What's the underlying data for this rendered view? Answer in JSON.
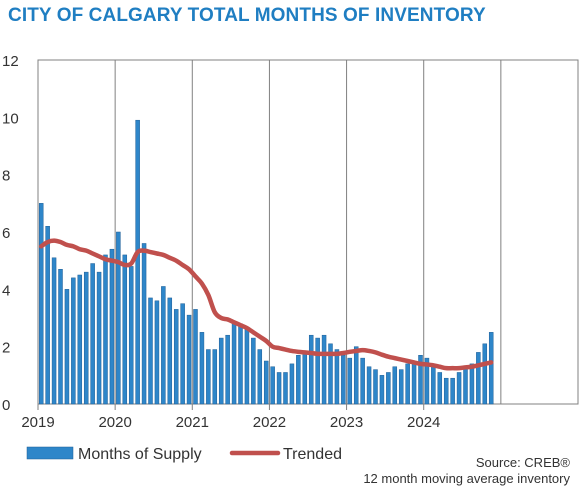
{
  "title": "CITY OF CALGARY TOTAL MONTHS OF INVENTORY",
  "source_line1": "Source: CREB®",
  "source_line2": "12 month moving average inventory",
  "colors": {
    "title": "#1f7ec2",
    "bar_fill": "#2e86c9",
    "bar_edge": "#1f5f96",
    "trend": "#c0504d",
    "grid": "#808080"
  },
  "chart_data": {
    "type": "bar",
    "ylim": [
      0,
      12
    ],
    "yticks": [
      0,
      2,
      4,
      6,
      8,
      10,
      12
    ],
    "xtick_labels": [
      "2019",
      "2020",
      "2021",
      "2022",
      "2023",
      "2024"
    ],
    "xlim_months": 84,
    "vertical_gridlines": true,
    "legend_position": "bottom-left",
    "series": [
      {
        "name": "Months of Supply",
        "type": "bar",
        "values": [
          7.0,
          6.2,
          5.1,
          4.7,
          4.0,
          4.4,
          4.5,
          4.6,
          4.9,
          4.6,
          5.2,
          5.4,
          6.0,
          5.2,
          4.8,
          9.9,
          5.6,
          3.7,
          3.6,
          4.1,
          3.7,
          3.3,
          3.5,
          3.1,
          3.3,
          2.5,
          1.9,
          1.9,
          2.3,
          2.4,
          2.8,
          2.8,
          2.6,
          2.3,
          1.9,
          1.5,
          1.3,
          1.1,
          1.1,
          1.4,
          1.7,
          1.8,
          2.4,
          2.3,
          2.4,
          2.1,
          1.9,
          1.7,
          1.6,
          2.0,
          1.6,
          1.3,
          1.2,
          1.0,
          1.1,
          1.3,
          1.2,
          1.4,
          1.4,
          1.7,
          1.6,
          1.3,
          1.1,
          0.9,
          0.9,
          1.1,
          1.3,
          1.4,
          1.8,
          2.1,
          2.5
        ]
      },
      {
        "name": "Trended",
        "type": "line",
        "values": [
          5.5,
          5.65,
          5.7,
          5.65,
          5.55,
          5.5,
          5.4,
          5.35,
          5.25,
          5.15,
          5.05,
          5.0,
          4.95,
          4.85,
          4.9,
          5.3,
          5.35,
          5.3,
          5.25,
          5.2,
          5.1,
          5.0,
          4.85,
          4.7,
          4.45,
          4.2,
          3.8,
          3.2,
          3.0,
          2.95,
          2.85,
          2.75,
          2.65,
          2.5,
          2.35,
          2.2,
          2.0,
          1.95,
          1.9,
          1.85,
          1.82,
          1.8,
          1.78,
          1.75,
          1.75,
          1.75,
          1.75,
          1.78,
          1.82,
          1.85,
          1.88,
          1.85,
          1.8,
          1.72,
          1.65,
          1.6,
          1.55,
          1.5,
          1.45,
          1.4,
          1.38,
          1.35,
          1.3,
          1.25,
          1.25,
          1.25,
          1.28,
          1.3,
          1.35,
          1.4,
          1.45
        ]
      }
    ]
  }
}
